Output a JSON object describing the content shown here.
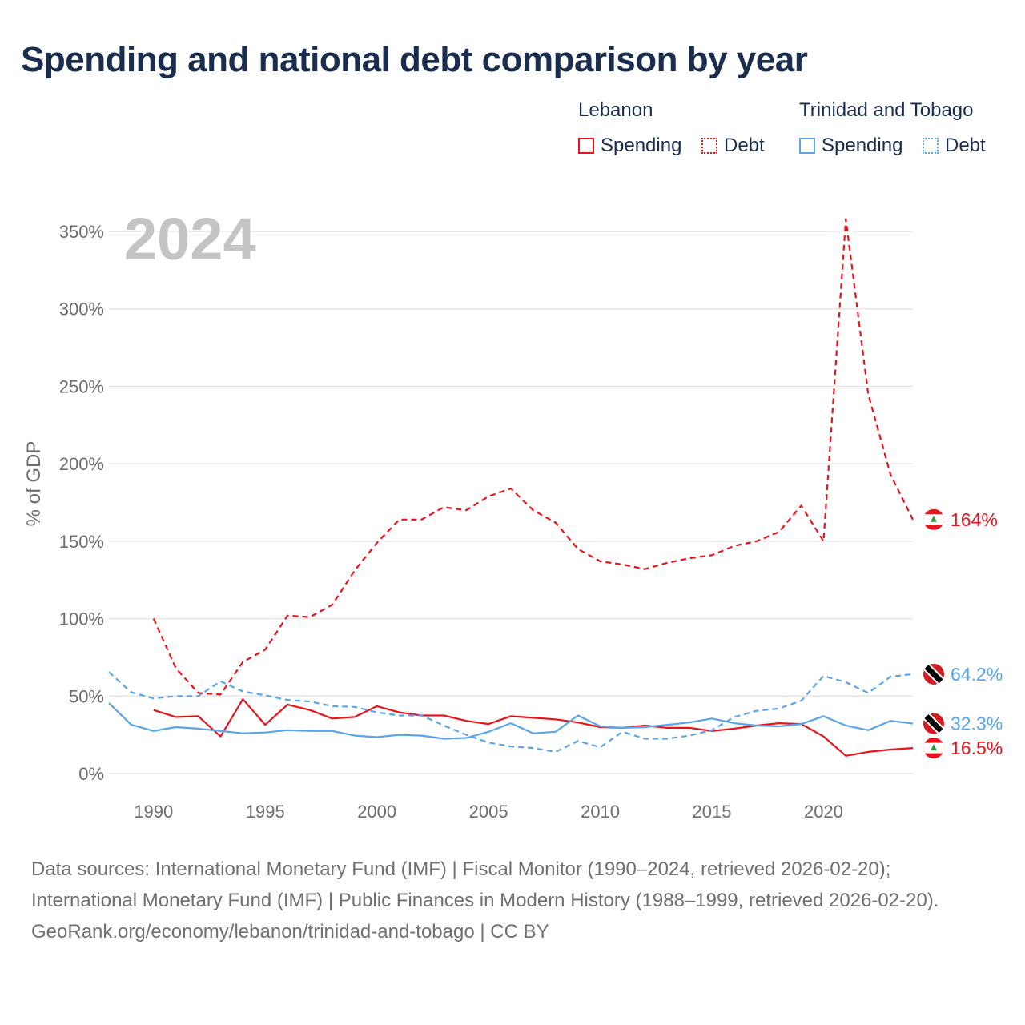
{
  "title": "Spending and national debt comparison by year",
  "legend": {
    "groups": [
      {
        "country": "Lebanon",
        "color": "#e8141b",
        "items": [
          {
            "label": "Spending",
            "style": "solid"
          },
          {
            "label": "Debt",
            "style": "dotted"
          }
        ]
      },
      {
        "country": "Trinidad and Tobago",
        "color": "#5aa5e8",
        "items": [
          {
            "label": "Spending",
            "style": "solid"
          },
          {
            "label": "Debt",
            "style": "dotted"
          }
        ]
      }
    ]
  },
  "footer": {
    "sources": "Data sources: International Monetary Fund (IMF) | Fiscal Monitor (1990–2024, retrieved 2026-02-20); International Monetary Fund (IMF) | Public Finances in Modern History (1988–1999, retrieved 2026-02-20).",
    "credit": "GeoRank.org/economy/lebanon/trinidad-and-tobago | CC BY"
  },
  "chart_data": {
    "type": "line",
    "year_label": "2024",
    "ylabel": "% of GDP",
    "xlabel": "",
    "xlim": [
      1988,
      2024
    ],
    "ylim": [
      0,
      360
    ],
    "x_ticks": [
      1990,
      1995,
      2000,
      2005,
      2010,
      2015,
      2020
    ],
    "y_ticks": [
      0,
      50,
      100,
      150,
      200,
      250,
      300,
      350
    ],
    "y_tick_labels": [
      "0%",
      "50%",
      "100%",
      "150%",
      "200%",
      "250%",
      "300%",
      "350%"
    ],
    "series": [
      {
        "name": "Lebanon Debt",
        "country": "Lebanon",
        "metric": "Debt",
        "color": "#e8141b",
        "dash": "dashed",
        "x": [
          1990,
          1991,
          1992,
          1993,
          1994,
          1995,
          1996,
          1997,
          1998,
          1999,
          2000,
          2001,
          2002,
          2003,
          2004,
          2005,
          2006,
          2007,
          2008,
          2009,
          2010,
          2011,
          2012,
          2013,
          2014,
          2015,
          2016,
          2017,
          2018,
          2019,
          2020,
          2021,
          2022,
          2023,
          2024
        ],
        "y": [
          100,
          68,
          52,
          51,
          72,
          80,
          102,
          101,
          109,
          131,
          149,
          164,
          164,
          172,
          170,
          179,
          184,
          170,
          162,
          145,
          137,
          135,
          132,
          136,
          139,
          141,
          147,
          150,
          156,
          173,
          150,
          358,
          245,
          193,
          164
        ],
        "end_label": "164%"
      },
      {
        "name": "Lebanon Spending",
        "country": "Lebanon",
        "metric": "Spending",
        "color": "#e8141b",
        "dash": "solid",
        "x": [
          1990,
          1991,
          1992,
          1993,
          1994,
          1995,
          1996,
          1997,
          1998,
          1999,
          2000,
          2001,
          2002,
          2003,
          2004,
          2005,
          2006,
          2007,
          2008,
          2009,
          2010,
          2011,
          2012,
          2013,
          2014,
          2015,
          2016,
          2017,
          2018,
          2019,
          2020,
          2021,
          2022,
          2023,
          2024
        ],
        "y": [
          41,
          36.5,
          37,
          24,
          48,
          31.5,
          44.5,
          41,
          35.5,
          36.5,
          43.5,
          39.5,
          37.5,
          37.5,
          34,
          32,
          37,
          36,
          35,
          33,
          30,
          29.5,
          31,
          29.5,
          29.5,
          27.5,
          29,
          31,
          32.5,
          32,
          24,
          11.5,
          14,
          15.5,
          16.5
        ],
        "end_label": "16.5%"
      },
      {
        "name": "Trinidad and Tobago Debt",
        "country": "Trinidad and Tobago",
        "metric": "Debt",
        "color": "#5aa5e8",
        "dash": "dashed",
        "x": [
          1988,
          1989,
          1990,
          1991,
          1992,
          1993,
          1994,
          1995,
          1996,
          1997,
          1998,
          1999,
          2000,
          2001,
          2002,
          2003,
          2004,
          2005,
          2006,
          2007,
          2008,
          2009,
          2010,
          2011,
          2012,
          2013,
          2014,
          2015,
          2016,
          2017,
          2018,
          2019,
          2020,
          2021,
          2022,
          2023,
          2024
        ],
        "y": [
          65.5,
          52.5,
          48.5,
          50,
          50,
          59.5,
          53,
          50.5,
          47.5,
          46.5,
          43.5,
          43,
          39.5,
          37.5,
          37.5,
          31,
          25,
          20,
          17.5,
          16.5,
          14,
          21,
          17,
          27,
          22.5,
          22.5,
          24.5,
          28,
          36.5,
          40.5,
          42,
          47,
          63,
          59,
          52,
          62.5,
          64.2
        ],
        "end_label": "64.2%"
      },
      {
        "name": "Trinidad and Tobago Spending",
        "country": "Trinidad and Tobago",
        "metric": "Spending",
        "color": "#5aa5e8",
        "dash": "solid",
        "x": [
          1988,
          1989,
          1990,
          1991,
          1992,
          1993,
          1994,
          1995,
          1996,
          1997,
          1998,
          1999,
          2000,
          2001,
          2002,
          2003,
          2004,
          2005,
          2006,
          2007,
          2008,
          2009,
          2010,
          2011,
          2012,
          2013,
          2014,
          2015,
          2016,
          2017,
          2018,
          2019,
          2020,
          2021,
          2022,
          2023,
          2024
        ],
        "y": [
          45.5,
          31.5,
          27.5,
          30,
          29,
          27.5,
          26,
          26.5,
          28,
          27.5,
          27.5,
          24.5,
          23.5,
          25,
          24.5,
          22.5,
          23,
          27,
          32.5,
          26,
          27,
          37.5,
          30.5,
          29.5,
          30,
          31.5,
          33,
          35.5,
          32.5,
          31,
          30.5,
          32,
          37,
          31,
          28,
          34,
          32.3
        ],
        "end_label": "32.3%"
      }
    ]
  }
}
